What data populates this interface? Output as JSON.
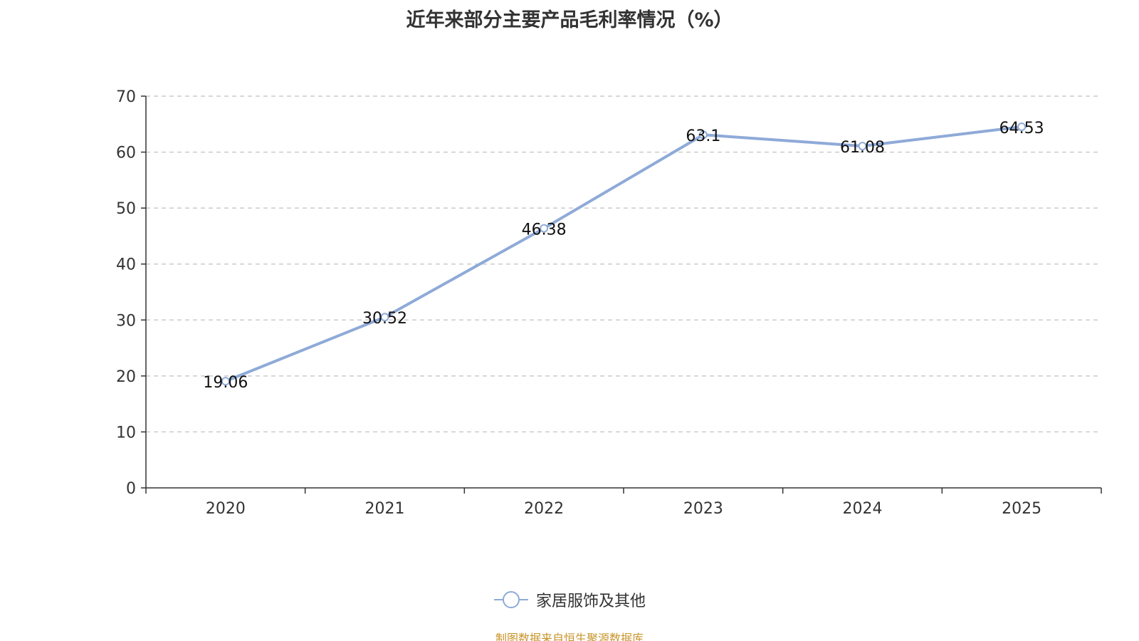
{
  "colors": {
    "series": "#8eaad8",
    "axis": "#333333",
    "grid": "#cccccc",
    "text": "#333333",
    "source": "#c8952b"
  },
  "chart_data": {
    "type": "line",
    "title": "近年来部分主要产品毛利率情况（%）",
    "categories": [
      "2020",
      "2021",
      "2022",
      "2023",
      "2024",
      "2025"
    ],
    "series": [
      {
        "name": "家居服饰及其他",
        "values": [
          19.06,
          30.52,
          46.38,
          63.1,
          61.08,
          64.53
        ],
        "labels": [
          "19.06",
          "30.52",
          "46.38",
          "63.1",
          "61.08",
          "64.53"
        ]
      }
    ],
    "y_ticks": [
      0,
      10,
      20,
      30,
      40,
      50,
      60,
      70
    ],
    "ylim": [
      0,
      70
    ],
    "xlabel": "",
    "ylabel": "",
    "grid": true,
    "legend_position": "bottom-center"
  },
  "footer": {
    "source": "制图数据来自恒生聚源数据库"
  }
}
